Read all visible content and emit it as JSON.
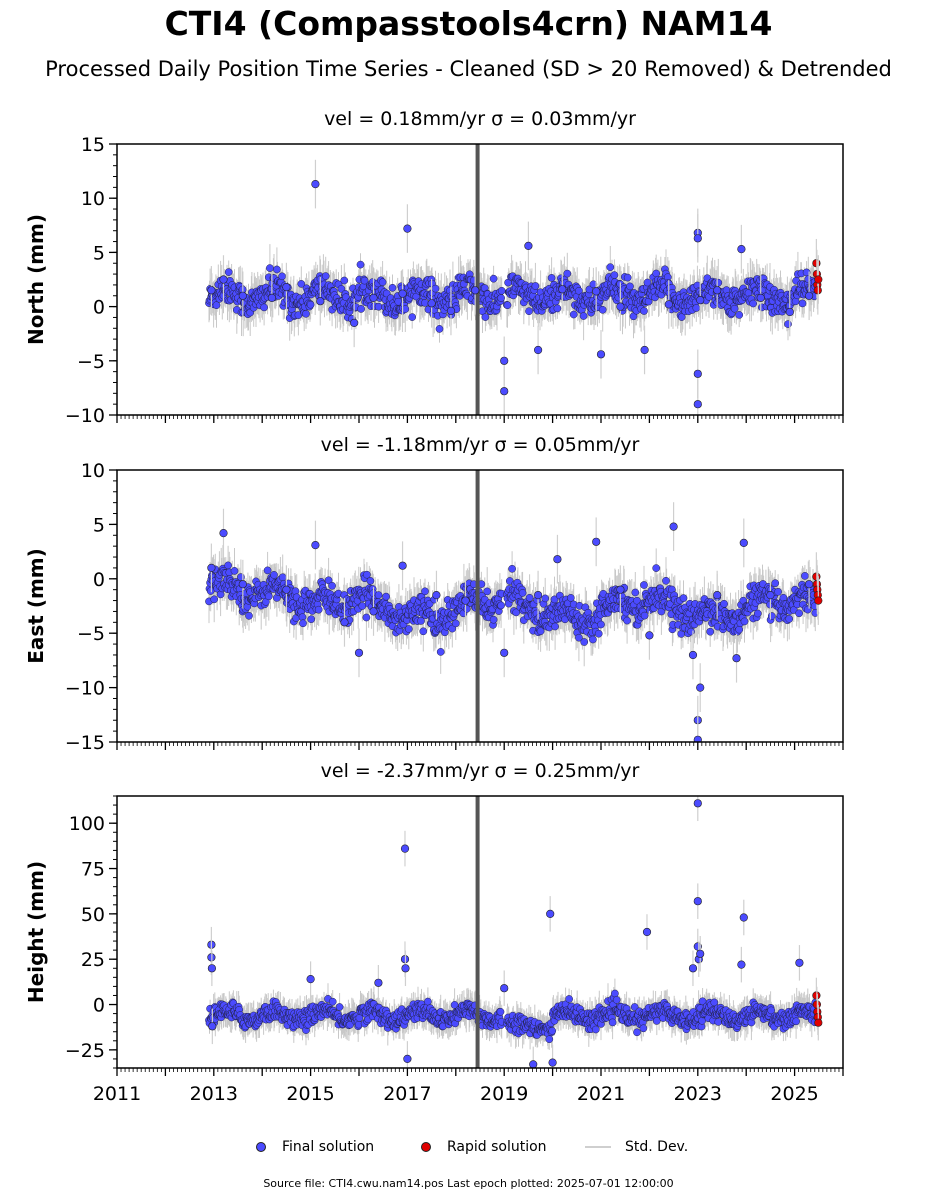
{
  "title": "CTI4 (Compasstools4crn) NAM14",
  "subtitle": "Processed Daily Position Time Series - Cleaned (SD > 20 Removed) & Detrended",
  "chart_data": [
    {
      "type": "scatter",
      "title": "vel = 0.18mm/yr   σ = 0.03mm/yr",
      "ylabel": "North (mm)",
      "xlim": [
        2011,
        2026
      ],
      "ylim": [
        -10,
        15
      ],
      "yticks": [
        -10,
        -5,
        0,
        5,
        10,
        15
      ],
      "grid": false,
      "series": [
        {
          "name": "Final solution",
          "color": "#4b4bff",
          "x": [
            2012.95,
            2013.2,
            2013.6,
            2014.2,
            2014.5,
            2015.1,
            2015.2,
            2015.9,
            2016.3,
            2016.9,
            2017.0,
            2017.5,
            2017.9,
            2018.4,
            2019.0,
            2019.0,
            2019.5,
            2019.7,
            2020.2,
            2020.9,
            2021.0,
            2021.4,
            2021.9,
            2022.4,
            2023.0,
            2023.0,
            2023.05,
            2023.0,
            2023.0,
            2023.4,
            2023.9,
            2024.3,
            2024.9,
            2025.3
          ],
          "y": [
            1.5,
            2.5,
            1.0,
            0.8,
            1.8,
            11.3,
            0.5,
            -1.5,
            0.8,
            1.2,
            7.2,
            0.3,
            -0.4,
            1.5,
            -5.0,
            -7.8,
            5.6,
            -4.0,
            1.6,
            1.4,
            -4.4,
            0.0,
            -4.0,
            0.2,
            6.8,
            6.3,
            0.6,
            -6.2,
            -9.0,
            1.5,
            5.3,
            0.8,
            -0.5,
            1.0
          ]
        },
        {
          "name": "Rapid solution",
          "color": "#e00000",
          "x": [
            2025.45,
            2025.46,
            2025.47,
            2025.48,
            2025.49
          ],
          "y": [
            4.0,
            3.0,
            2.0,
            1.5,
            2.5
          ]
        }
      ]
    },
    {
      "type": "scatter",
      "title": "vel = -1.18mm/yr   σ = 0.05mm/yr",
      "ylabel": "East (mm)",
      "xlim": [
        2011,
        2026
      ],
      "ylim": [
        -15,
        10
      ],
      "yticks": [
        -15,
        -10,
        -5,
        0,
        5,
        10
      ],
      "grid": false,
      "series": [
        {
          "name": "Final solution",
          "color": "#4b4bff",
          "x": [
            2012.95,
            2013.2,
            2013.6,
            2014.5,
            2015.1,
            2015.7,
            2016.0,
            2016.3,
            2016.9,
            2017.6,
            2018.2,
            2019.0,
            2019.7,
            2020.1,
            2020.9,
            2021.4,
            2022.0,
            2022.5,
            2022.9,
            2023.0,
            2023.05,
            2023.0,
            2023.4,
            2023.8,
            2023.95,
            2024.5,
            2025.3
          ],
          "y": [
            1.0,
            4.2,
            -0.5,
            -1.0,
            3.1,
            -4.0,
            -6.8,
            -3.0,
            1.2,
            -1.5,
            -2.0,
            -6.8,
            -1.5,
            1.8,
            3.4,
            -1.0,
            -5.2,
            4.8,
            -7.0,
            -13.0,
            -10.0,
            -14.8,
            -1.5,
            -7.3,
            3.3,
            -1.5,
            -0.5
          ]
        },
        {
          "name": "Rapid solution",
          "color": "#e00000",
          "x": [
            2025.45,
            2025.46,
            2025.47,
            2025.48,
            2025.49
          ],
          "y": [
            0.2,
            -0.5,
            -1.0,
            -1.5,
            -2.0
          ]
        }
      ]
    },
    {
      "type": "scatter",
      "title": "vel = -2.37mm/yr   σ = 0.25mm/yr",
      "ylabel": "Height (mm)",
      "xlim": [
        2011,
        2026
      ],
      "ylim": [
        -35,
        115
      ],
      "yticks": [
        -25,
        0,
        25,
        50,
        75,
        100
      ],
      "xticks": [
        "2011",
        "2013",
        "2015",
        "2017",
        "2019",
        "2021",
        "2023",
        "2025"
      ],
      "grid": false,
      "series": [
        {
          "name": "Final solution",
          "color": "#4b4bff",
          "x": [
            2012.95,
            2012.95,
            2012.96,
            2012.97,
            2015.0,
            2016.4,
            2016.95,
            2016.95,
            2016.96,
            2017.0,
            2019.0,
            2019.95,
            2020.0,
            2021.95,
            2022.9,
            2023.0,
            2023.0,
            2023.0,
            2023.02,
            2023.05,
            2023.9,
            2023.95,
            2025.1,
            2019.6
          ],
          "y": [
            33,
            26,
            20,
            -12,
            14,
            12,
            86,
            25,
            20,
            -30,
            9,
            50,
            -32,
            40,
            20,
            111,
            57,
            32,
            25,
            28,
            22,
            48,
            23,
            -33
          ]
        },
        {
          "name": "Rapid solution",
          "color": "#e00000",
          "x": [
            2025.45,
            2025.46,
            2025.47,
            2025.48,
            2025.49
          ],
          "y": [
            5,
            0,
            -4,
            -7,
            -10
          ]
        }
      ]
    }
  ],
  "legend": {
    "final": "Final solution",
    "rapid": "Rapid solution",
    "stddev": "Std. Dev.",
    "placement": "bottom-center"
  },
  "footer": "Source file: CTI4.cwu.nam14.pos  Last epoch plotted: 2025-07-01 12:00:00"
}
